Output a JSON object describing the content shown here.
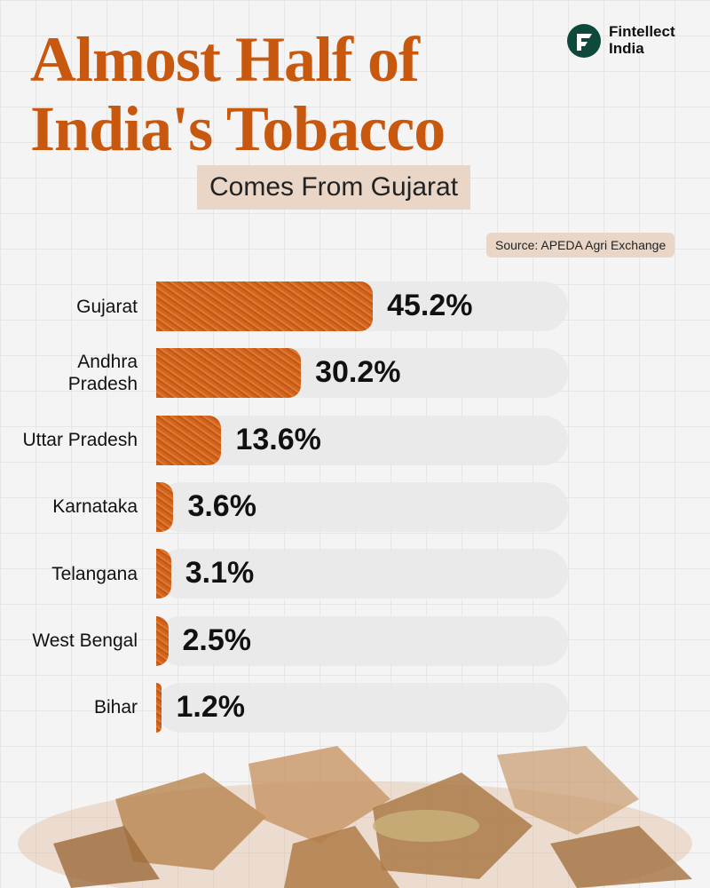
{
  "brand": "Fintellect India",
  "chart_data": {
    "type": "bar",
    "orientation": "horizontal",
    "title": "Almost Half of India's Tobacco",
    "subtitle": "Comes From Gujarat",
    "source": "Source: APEDA Agri Exchange",
    "categories": [
      "Gujarat",
      "Andhra Pradesh",
      "Uttar Pradesh",
      "Karnataka",
      "Telangana",
      "West Bengal",
      "Bihar"
    ],
    "values": [
      45.2,
      30.2,
      13.6,
      3.6,
      3.1,
      2.5,
      1.2
    ],
    "value_labels": [
      "45.2%",
      "30.2%",
      "13.6%",
      "3.6%",
      "3.1%",
      "2.5%",
      "1.2%"
    ],
    "color": "#d2651d"
  }
}
